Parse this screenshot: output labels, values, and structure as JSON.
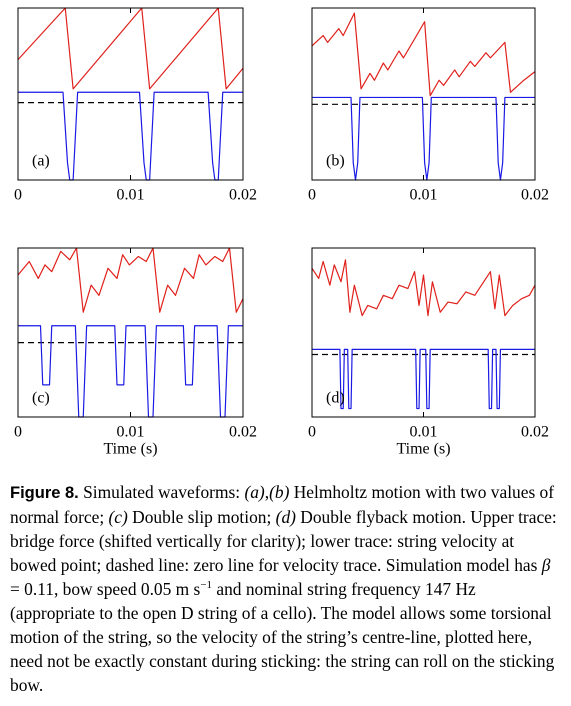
{
  "chart_data": [
    {
      "type": "line",
      "label": "(a)",
      "xlim": [
        0,
        0.02
      ],
      "xticks": [
        0,
        0.01,
        0.02
      ],
      "ylim": [
        0,
        1
      ],
      "series": [
        {
          "color": "#e0201b",
          "x": [
            0,
            0.0042,
            0.0049,
            0.011,
            0.0117,
            0.0178,
            0.0185,
            0.02
          ],
          "values": [
            0.7,
            1.0,
            0.53,
            1.0,
            0.53,
            1.0,
            0.53,
            0.65
          ]
        },
        {
          "color": "#1a1ae6",
          "x": [
            0,
            0.004,
            0.0044,
            0.0046,
            0.0049,
            0.0053,
            0.0108,
            0.0112,
            0.0114,
            0.0117,
            0.0121,
            0.0169,
            0.0173,
            0.0175,
            0.0178,
            0.0182,
            0.02
          ],
          "values": [
            0.51,
            0.51,
            0.1,
            0,
            0,
            0.51,
            0.51,
            0.1,
            0,
            0,
            0.51,
            0.51,
            0.1,
            0,
            0,
            0.51,
            0.51
          ]
        }
      ],
      "hlines": [
        {
          "value": 0.45,
          "dash": true,
          "color": "#000000"
        }
      ]
    },
    {
      "type": "line",
      "label": "(b)",
      "xlim": [
        0,
        0.02
      ],
      "xticks": [
        0,
        0.01,
        0.02
      ],
      "ylim": [
        0,
        1
      ],
      "series": [
        {
          "color": "#e0201b",
          "x": [
            0,
            0.001,
            0.0014,
            0.0024,
            0.0028,
            0.0038,
            0.0044,
            0.0052,
            0.0056,
            0.0064,
            0.0068,
            0.0078,
            0.0082,
            0.0092,
            0.0101,
            0.0106,
            0.0114,
            0.0118,
            0.0128,
            0.0132,
            0.0142,
            0.0146,
            0.0156,
            0.016,
            0.0173,
            0.0178,
            0.019,
            0.02
          ],
          "values": [
            0.78,
            0.84,
            0.8,
            0.88,
            0.84,
            0.97,
            0.53,
            0.62,
            0.58,
            0.68,
            0.64,
            0.75,
            0.71,
            0.82,
            0.92,
            0.49,
            0.58,
            0.55,
            0.64,
            0.6,
            0.69,
            0.66,
            0.74,
            0.71,
            0.8,
            0.51,
            0.58,
            0.63
          ]
        },
        {
          "color": "#1a1ae6",
          "x": [
            0,
            0.0035,
            0.0037,
            0.0039,
            0.0041,
            0.0043,
            0.0099,
            0.0101,
            0.0103,
            0.0105,
            0.0107,
            0.0165,
            0.0167,
            0.0169,
            0.0171,
            0.0173,
            0.02
          ],
          "values": [
            0.48,
            0.48,
            0.1,
            0,
            0.1,
            0.48,
            0.48,
            0.1,
            0,
            0.1,
            0.48,
            0.48,
            0.1,
            0,
            0.1,
            0.48,
            0.48
          ]
        }
      ],
      "hlines": [
        {
          "value": 0.44,
          "dash": true,
          "color": "#000000"
        }
      ]
    },
    {
      "type": "line",
      "label": "(c)",
      "xlabel": "Time (s)",
      "xlim": [
        0,
        0.02
      ],
      "xticks": [
        0,
        0.01,
        0.02
      ],
      "ylim": [
        0,
        1
      ],
      "series": [
        {
          "color": "#e0201b",
          "x": [
            0,
            0.001,
            0.0018,
            0.0024,
            0.003,
            0.0038,
            0.0046,
            0.0052,
            0.0058,
            0.0065,
            0.0072,
            0.008,
            0.0088,
            0.0093,
            0.0099,
            0.0107,
            0.0114,
            0.012,
            0.0126,
            0.0133,
            0.014,
            0.0148,
            0.0156,
            0.0161,
            0.0167,
            0.0175,
            0.0182,
            0.0188,
            0.0194,
            0.02
          ],
          "values": [
            0.84,
            0.92,
            0.82,
            0.9,
            0.86,
            0.98,
            0.93,
            1.0,
            0.62,
            0.78,
            0.72,
            0.88,
            0.82,
            0.96,
            0.9,
            0.95,
            0.92,
            1.0,
            0.62,
            0.78,
            0.72,
            0.88,
            0.82,
            0.96,
            0.9,
            0.95,
            0.92,
            1.0,
            0.62,
            0.7
          ]
        },
        {
          "color": "#1a1ae6",
          "x": [
            0,
            0.002,
            0.0022,
            0.0028,
            0.003,
            0.0051,
            0.0054,
            0.0058,
            0.0061,
            0.0086,
            0.0088,
            0.0094,
            0.0096,
            0.0113,
            0.0116,
            0.012,
            0.0123,
            0.0147,
            0.0149,
            0.0155,
            0.0157,
            0.0177,
            0.018,
            0.0184,
            0.0187,
            0.02
          ],
          "values": [
            0.54,
            0.54,
            0.19,
            0.19,
            0.54,
            0.54,
            0,
            0,
            0.54,
            0.54,
            0.19,
            0.19,
            0.54,
            0.54,
            0,
            0,
            0.54,
            0.54,
            0.19,
            0.19,
            0.54,
            0.54,
            0,
            0,
            0.54,
            0.54
          ]
        }
      ],
      "hlines": [
        {
          "value": 0.44,
          "dash": true,
          "color": "#000000"
        }
      ]
    },
    {
      "type": "line",
      "label": "(d)",
      "xlabel": "Time (s)",
      "xlim": [
        0,
        0.02
      ],
      "xticks": [
        0,
        0.01,
        0.02
      ],
      "ylim": [
        0,
        1
      ],
      "series": [
        {
          "color": "#e0201b",
          "x": [
            0,
            0.0006,
            0.001,
            0.0016,
            0.002,
            0.0026,
            0.003,
            0.0034,
            0.0038,
            0.0045,
            0.005,
            0.0058,
            0.0064,
            0.0072,
            0.0078,
            0.0086,
            0.0092,
            0.0096,
            0.01,
            0.0104,
            0.0108,
            0.0115,
            0.0122,
            0.013,
            0.0138,
            0.0146,
            0.0154,
            0.016,
            0.0164,
            0.0168,
            0.0173,
            0.018,
            0.0188,
            0.0195,
            0.02
          ],
          "values": [
            0.88,
            0.82,
            0.92,
            0.78,
            0.9,
            0.8,
            0.93,
            0.62,
            0.78,
            0.6,
            0.66,
            0.64,
            0.72,
            0.7,
            0.78,
            0.76,
            0.86,
            0.66,
            0.84,
            0.6,
            0.8,
            0.62,
            0.68,
            0.67,
            0.74,
            0.72,
            0.8,
            0.86,
            0.64,
            0.84,
            0.6,
            0.66,
            0.7,
            0.72,
            0.78
          ]
        },
        {
          "color": "#1a1ae6",
          "x": [
            0,
            0.0025,
            0.0026,
            0.0028,
            0.0029,
            0.0032,
            0.0033,
            0.0035,
            0.0036,
            0.0093,
            0.0094,
            0.0096,
            0.0097,
            0.0102,
            0.0103,
            0.0105,
            0.0106,
            0.0158,
            0.0159,
            0.0161,
            0.0162,
            0.0165,
            0.0166,
            0.0168,
            0.0169,
            0.02
          ],
          "values": [
            0.4,
            0.4,
            0.05,
            0.05,
            0.4,
            0.4,
            0.05,
            0.05,
            0.4,
            0.4,
            0.05,
            0.05,
            0.4,
            0.4,
            0.05,
            0.05,
            0.4,
            0.4,
            0.05,
            0.05,
            0.4,
            0.4,
            0.05,
            0.05,
            0.4,
            0.4
          ]
        }
      ],
      "hlines": [
        {
          "value": 0.37,
          "dash": true,
          "color": "#000000"
        }
      ]
    }
  ],
  "caption": [
    {
      "text": "Figure 8.",
      "style": "bold"
    },
    {
      "text": " Simulated waveforms: "
    },
    {
      "text": "(a)",
      "style": "italic"
    },
    {
      "text": ","
    },
    {
      "text": "(b)",
      "style": "italic"
    },
    {
      "text": " Helmholtz motion with two values of normal force; "
    },
    {
      "text": "(c)",
      "style": "italic"
    },
    {
      "text": " Double slip motion; "
    },
    {
      "text": "(d)",
      "style": "italic"
    },
    {
      "text": " Double flyback motion. Upper trace: bridge force (shifted vertically for clarity); lower trace: string velocity at bowed point; dashed line: zero line for velocity trace. Simulation model has "
    },
    {
      "text": "β",
      "style": "italic"
    },
    {
      "text": " = 0.11, bow speed 0.05 m s"
    },
    {
      "text": "−1",
      "style": "sup"
    },
    {
      "text": " and nominal string frequency 147 Hz (appropriate to the open D string of a cello). The model allows some torsional motion of the string, so the velocity of the string’s centre-line, plotted here, need not be exactly constant during sticking: the string can roll on the sticking bow."
    }
  ]
}
